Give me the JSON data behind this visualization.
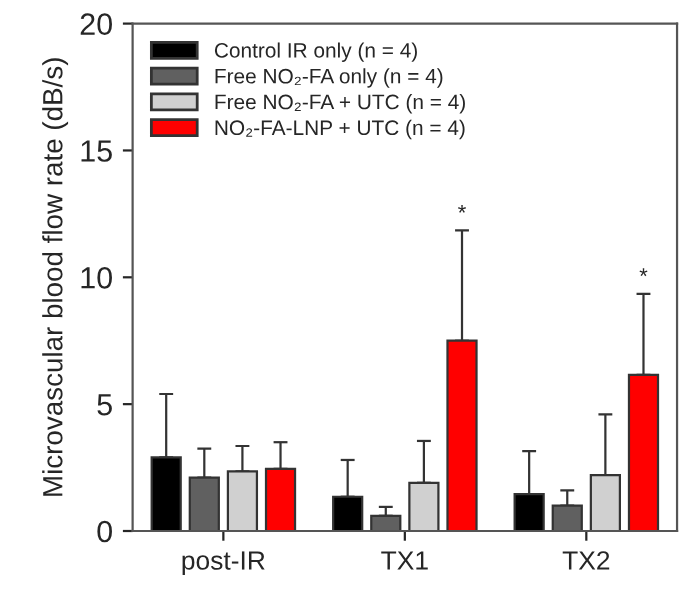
{
  "chart_data": {
    "type": "bar",
    "ylabel": "Microvascular blood flow rate (dB/s)",
    "categories": [
      "post-IR",
      "TX1",
      "TX2"
    ],
    "series": [
      {
        "name": "Control IR only (n = 4)",
        "color": "#000000",
        "values": [
          2.9,
          1.35,
          1.45
        ],
        "errors": [
          [
            2.9,
            5.4
          ],
          [
            1.35,
            2.8
          ],
          [
            1.45,
            3.15
          ]
        ]
      },
      {
        "name": "Free NO₂-FA only (n = 4)",
        "color": "#606060",
        "values": [
          2.1,
          0.6,
          1.0
        ],
        "errors": [
          [
            2.1,
            3.25
          ],
          [
            0.6,
            0.95
          ],
          [
            1.0,
            1.6
          ]
        ]
      },
      {
        "name": "Free NO₂-FA + UTC (n = 4)",
        "color": "#d0d0d0",
        "values": [
          2.35,
          1.9,
          2.2
        ],
        "errors": [
          [
            2.35,
            3.35
          ],
          [
            1.9,
            3.55
          ],
          [
            2.2,
            4.6
          ]
        ]
      },
      {
        "name": "NO₂-FA-LNP + UTC (n = 4)",
        "color": "#ff0000",
        "values": [
          2.45,
          7.5,
          6.15
        ],
        "errors": [
          [
            2.45,
            3.5
          ],
          [
            7.5,
            11.85
          ],
          [
            6.15,
            9.35
          ]
        ]
      }
    ],
    "annotations": [
      "*",
      "*"
    ],
    "ylim": [
      0,
      20
    ],
    "yticks": [
      0,
      5,
      10,
      15,
      20
    ],
    "grid": false,
    "legend": "top left"
  }
}
